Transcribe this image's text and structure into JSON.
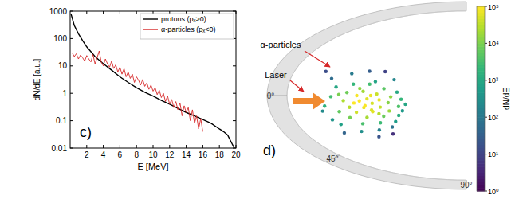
{
  "chart_data": [
    {
      "type": "line",
      "label": "c)",
      "xlabel": "E [MeV]",
      "ylabel": "dN/dE [a.u.]",
      "log": "y",
      "legend": "upper right",
      "xlim": [
        0,
        20
      ],
      "xticks": [
        2,
        4,
        6,
        8,
        10,
        12,
        14,
        16,
        18,
        20
      ],
      "ylim": [
        0.01,
        1000
      ],
      "yticks": [
        0.01,
        0.1,
        1,
        10,
        100,
        1000
      ],
      "series": [
        {
          "name": "protons (pₓ>0)",
          "color": "#000000",
          "x": [
            0.1,
            0.5,
            1,
            1.5,
            2,
            3,
            4,
            5,
            6,
            7,
            8,
            9,
            10,
            11,
            12,
            13,
            14,
            15,
            16,
            17,
            18,
            18.5,
            19,
            19.5,
            19.8
          ],
          "values": [
            800,
            300,
            150,
            85,
            50,
            22,
            12,
            7,
            4,
            2.5,
            1.6,
            1.1,
            0.8,
            0.55,
            0.4,
            0.28,
            0.2,
            0.15,
            0.11,
            0.08,
            0.05,
            0.04,
            0.03,
            0.015,
            0.01
          ]
        },
        {
          "name": "α-particles (pₓ<0)",
          "color": "#d62728",
          "x": [
            0.25,
            0.5,
            0.75,
            1,
            1.25,
            1.5,
            1.75,
            2,
            2.25,
            2.5,
            2.75,
            3,
            3.25,
            3.5,
            3.75,
            4,
            4.25,
            4.5,
            4.75,
            5,
            5.25,
            5.5,
            5.75,
            6,
            6.25,
            6.5,
            6.75,
            7,
            7.25,
            7.5,
            7.75,
            8,
            8.25,
            8.5,
            8.75,
            9,
            9.25,
            9.5,
            9.75,
            10,
            10.25,
            10.5,
            10.75,
            11,
            11.25,
            11.5,
            11.75,
            12,
            12.25,
            12.5,
            12.75,
            13,
            13.25,
            13.5,
            13.75,
            14,
            14.25,
            14.5,
            14.75,
            15,
            15.25,
            15.5,
            15.75,
            16
          ],
          "values": [
            30,
            22,
            28,
            18,
            25,
            20,
            15,
            24,
            18,
            14,
            26,
            12,
            20,
            35,
            14,
            10,
            18,
            12,
            9,
            15,
            8,
            11,
            6,
            9,
            5,
            8,
            4,
            6,
            3.5,
            5,
            2.5,
            4,
            3,
            2,
            3.2,
            1.8,
            2.4,
            1.4,
            2,
            1.2,
            1.6,
            0.9,
            1.3,
            0.7,
            1,
            0.5,
            0.8,
            0.4,
            0.6,
            0.3,
            0.5,
            0.25,
            0.45,
            0.15,
            0.35,
            0.2,
            0.3,
            0.1,
            0.25,
            0.08,
            0.15,
            0.05,
            0.12,
            0.04
          ]
        }
      ]
    },
    {
      "type": "polar_scatter",
      "label": "d)",
      "annotations": [
        {
          "text": "α-particles"
        },
        {
          "text": "Laser"
        }
      ],
      "thetalim": [
        -90,
        90
      ],
      "thetaticks": [
        {
          "value": 0,
          "label": "0°"
        },
        {
          "value": 45,
          "label": "45°"
        },
        {
          "value": 90,
          "label": "90°"
        }
      ],
      "theta": [
        -28,
        -22,
        -18,
        -15,
        -12,
        -10,
        -8,
        -5,
        -3,
        -2,
        0,
        1,
        2,
        4,
        5,
        6,
        8,
        9,
        10,
        11,
        12,
        14,
        15,
        16,
        18,
        19,
        20,
        22,
        23,
        25,
        26,
        28,
        30,
        32,
        34,
        36,
        38,
        40,
        42,
        45,
        -25,
        -20,
        -6,
        3,
        7,
        13,
        17,
        21,
        27,
        33,
        -32,
        -14,
        -1,
        12,
        24,
        0,
        6,
        18,
        -8,
        48
      ],
      "r": [
        0.55,
        0.62,
        0.48,
        0.7,
        0.58,
        0.42,
        0.66,
        0.52,
        0.6,
        0.45,
        0.55,
        0.68,
        0.38,
        0.5,
        0.62,
        0.44,
        0.57,
        0.72,
        0.48,
        0.4,
        0.6,
        0.53,
        0.66,
        0.45,
        0.58,
        0.36,
        0.5,
        0.63,
        0.42,
        0.55,
        0.7,
        0.47,
        0.6,
        0.4,
        0.52,
        0.65,
        0.45,
        0.57,
        0.5,
        0.62,
        0.4,
        0.75,
        0.35,
        0.76,
        0.33,
        0.74,
        0.32,
        0.72,
        0.36,
        0.73,
        0.48,
        0.5,
        0.64,
        0.52,
        0.48,
        0.48,
        0.54,
        0.5,
        0.54,
        0.55
      ],
      "values": [
        30,
        120,
        800,
        60,
        2000,
        5000,
        900,
        20000,
        8000,
        40000,
        90000,
        3000,
        15000,
        60000,
        25000,
        70000,
        100000,
        1500,
        50000,
        12000,
        30000,
        80000,
        6000,
        35000,
        45000,
        4000,
        65000,
        9000,
        18000,
        22000,
        700,
        7000,
        3500,
        1200,
        2500,
        300,
        600,
        150,
        80,
        20,
        200,
        15,
        1000,
        100,
        2000,
        250,
        900,
        400,
        500,
        40,
        10,
        3000,
        10000,
        95000,
        28000,
        75000,
        99000,
        55000,
        14000,
        5
      ],
      "log": true,
      "colorbar": {
        "label": "dN/dE",
        "lim": [
          1,
          100000
        ],
        "ticks": [
          {
            "value": 1,
            "label": "10⁰"
          },
          {
            "value": 10,
            "label": "10¹"
          },
          {
            "value": 100,
            "label": "10²"
          },
          {
            "value": 1000,
            "label": "10³"
          },
          {
            "value": 10000,
            "label": "10⁴"
          },
          {
            "value": 100000,
            "label": "10⁵"
          }
        ]
      }
    }
  ]
}
